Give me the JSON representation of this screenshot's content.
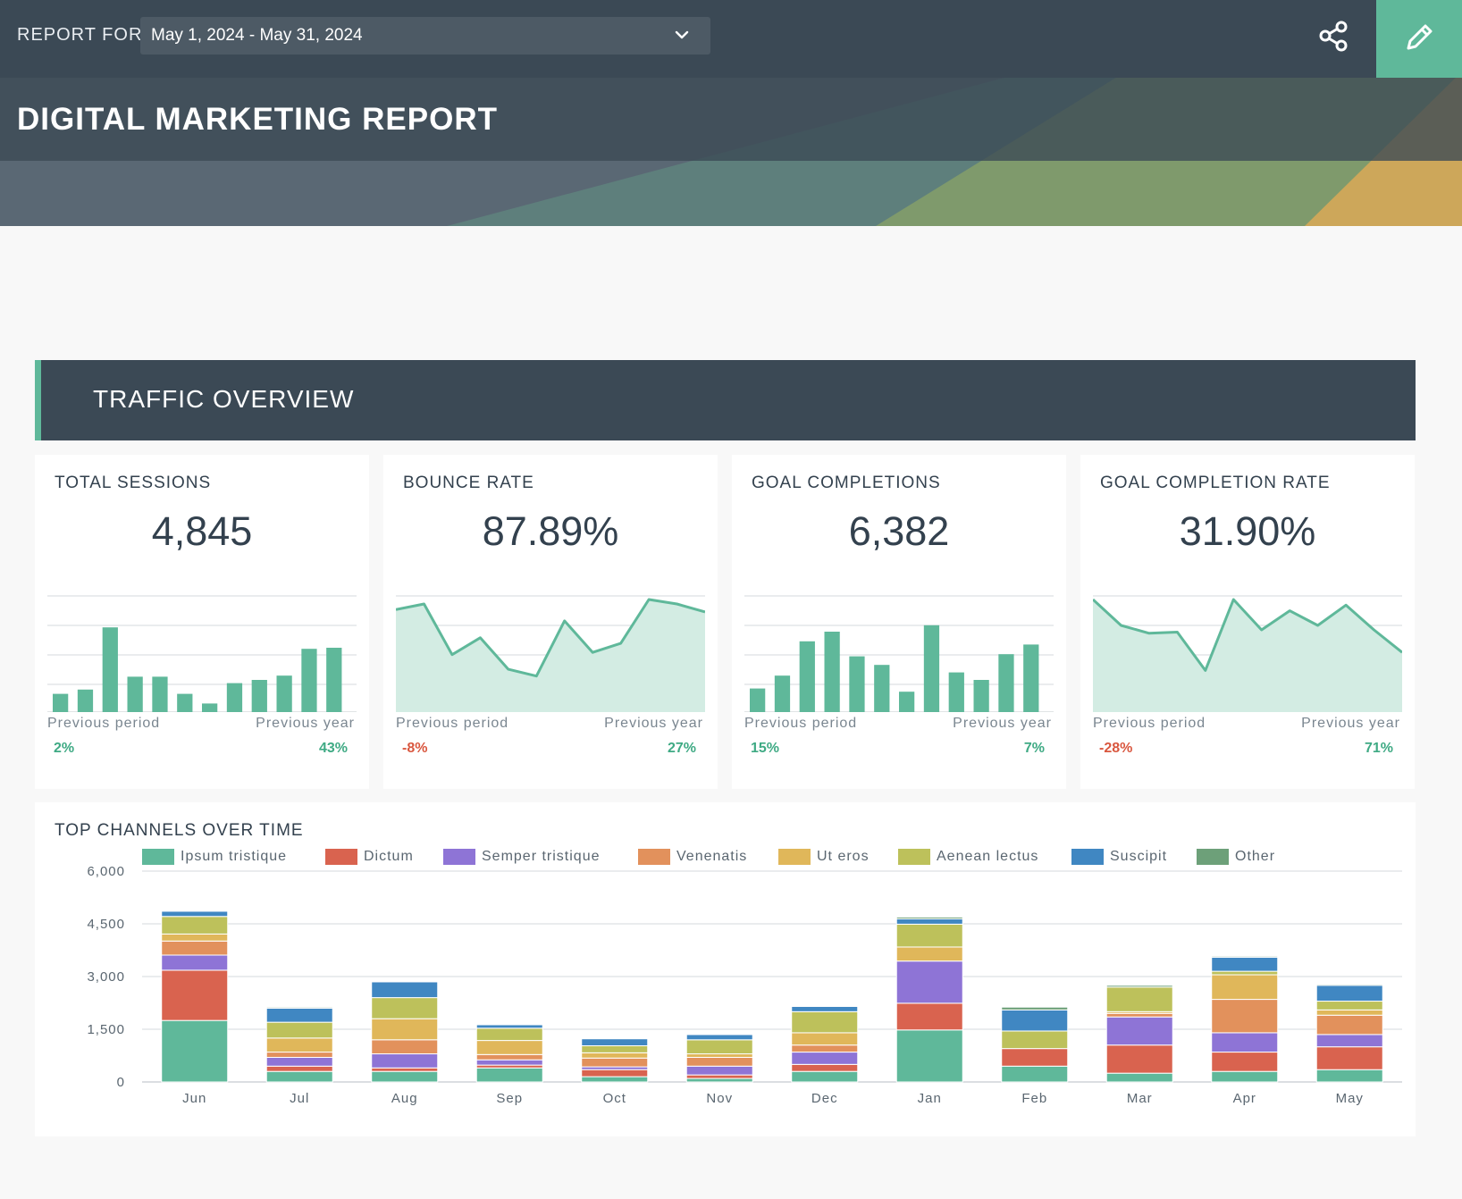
{
  "header": {
    "report_for_label": "REPORT FOR",
    "date_range": "May 1, 2024 - May 31, 2024",
    "title": "DIGITAL MARKETING REPORT",
    "icons": {
      "date_dropdown": "chevron-down-icon",
      "share": "share-icon",
      "edit": "pencil-icon"
    }
  },
  "section": {
    "title": "TRAFFIC OVERVIEW"
  },
  "colors": {
    "accent": "#5fb89a",
    "positive": "#3faa84",
    "negative": "#d9573f",
    "header": "#3b4955"
  },
  "kpis": [
    {
      "label": "TOTAL SESSIONS",
      "value": "4,845",
      "prev_period_label": "Previous period",
      "prev_period_value": "2%",
      "prev_period_trend": "pos",
      "prev_year_label": "Previous year",
      "prev_year_value": "43%",
      "prev_year_trend": "pos",
      "spark_type": "bar",
      "spark": [
        17,
        21,
        79,
        33,
        33,
        17,
        8,
        27,
        30,
        34,
        59,
        60
      ]
    },
    {
      "label": "BOUNCE RATE",
      "value": "87.89%",
      "prev_period_label": "Previous period",
      "prev_period_value": "-8%",
      "prev_period_trend": "neg",
      "prev_year_label": "Previous year",
      "prev_year_value": "27%",
      "prev_year_trend": "pos",
      "spark_type": "area",
      "spark": [
        91,
        96,
        51,
        66,
        38,
        32,
        81,
        53,
        61,
        100,
        96,
        89
      ]
    },
    {
      "label": "GOAL COMPLETIONS",
      "value": "6,382",
      "prev_period_label": "Previous period",
      "prev_period_value": "15%",
      "prev_period_trend": "pos",
      "prev_year_label": "Previous year",
      "prev_year_value": "7%",
      "prev_year_trend": "pos",
      "spark_type": "bar",
      "spark": [
        22,
        34,
        66,
        75,
        52,
        44,
        19,
        81,
        37,
        30,
        54,
        63
      ]
    },
    {
      "label": "GOAL COMPLETION RATE",
      "value": "31.90%",
      "prev_period_label": "Previous period",
      "prev_period_value": "-28%",
      "prev_period_trend": "neg",
      "prev_year_label": "Previous year",
      "prev_year_value": "71%",
      "prev_year_trend": "pos",
      "spark_type": "area",
      "spark": [
        100,
        77,
        70,
        71,
        37,
        100,
        73,
        90,
        77,
        95,
        73,
        53
      ]
    }
  ],
  "chart_data": {
    "type": "bar",
    "stacked": true,
    "title": "TOP CHANNELS OVER TIME",
    "categories": [
      "Jun",
      "Jul",
      "Aug",
      "Sep",
      "Oct",
      "Nov",
      "Dec",
      "Jan",
      "Feb",
      "Mar",
      "Apr",
      "May"
    ],
    "ylim": [
      0,
      6000
    ],
    "yticks": [
      "0",
      "1,500",
      "3,000",
      "4,500",
      "6,000"
    ],
    "ytick_values": [
      0,
      1500,
      3000,
      4500,
      6000
    ],
    "grid": true,
    "legend_position": "top",
    "series": [
      {
        "name": "Ipsum tristique",
        "color": "#5fb89a",
        "values": [
          1750,
          300,
          300,
          400,
          150,
          100,
          300,
          1480,
          450,
          250,
          300,
          350
        ]
      },
      {
        "name": "Dictum",
        "color": "#d9634f",
        "values": [
          1430,
          150,
          100,
          80,
          200,
          100,
          200,
          760,
          500,
          800,
          550,
          650
        ]
      },
      {
        "name": "Semper tristique",
        "color": "#8e74d6",
        "values": [
          430,
          250,
          400,
          150,
          80,
          250,
          350,
          1200,
          0,
          800,
          550,
          350
        ]
      },
      {
        "name": "Venenatis",
        "color": "#e2915c",
        "values": [
          400,
          150,
          400,
          150,
          250,
          250,
          200,
          0,
          0,
          100,
          950,
          550
        ]
      },
      {
        "name": "Ut eros",
        "color": "#e0b75a",
        "values": [
          200,
          400,
          600,
          400,
          150,
          100,
          350,
          400,
          0,
          50,
          700,
          150
        ]
      },
      {
        "name": "Aenean lectus",
        "color": "#bdc15b",
        "values": [
          500,
          450,
          600,
          350,
          200,
          400,
          600,
          650,
          500,
          700,
          100,
          250
        ]
      },
      {
        "name": "Suscipit",
        "color": "#4087c2",
        "values": [
          150,
          400,
          450,
          100,
          200,
          150,
          150,
          150,
          600,
          0,
          400,
          450
        ]
      },
      {
        "name": "Other",
        "color": "#6da079",
        "values": [
          20,
          30,
          20,
          20,
          20,
          20,
          20,
          50,
          80,
          50,
          30,
          30
        ]
      }
    ]
  }
}
